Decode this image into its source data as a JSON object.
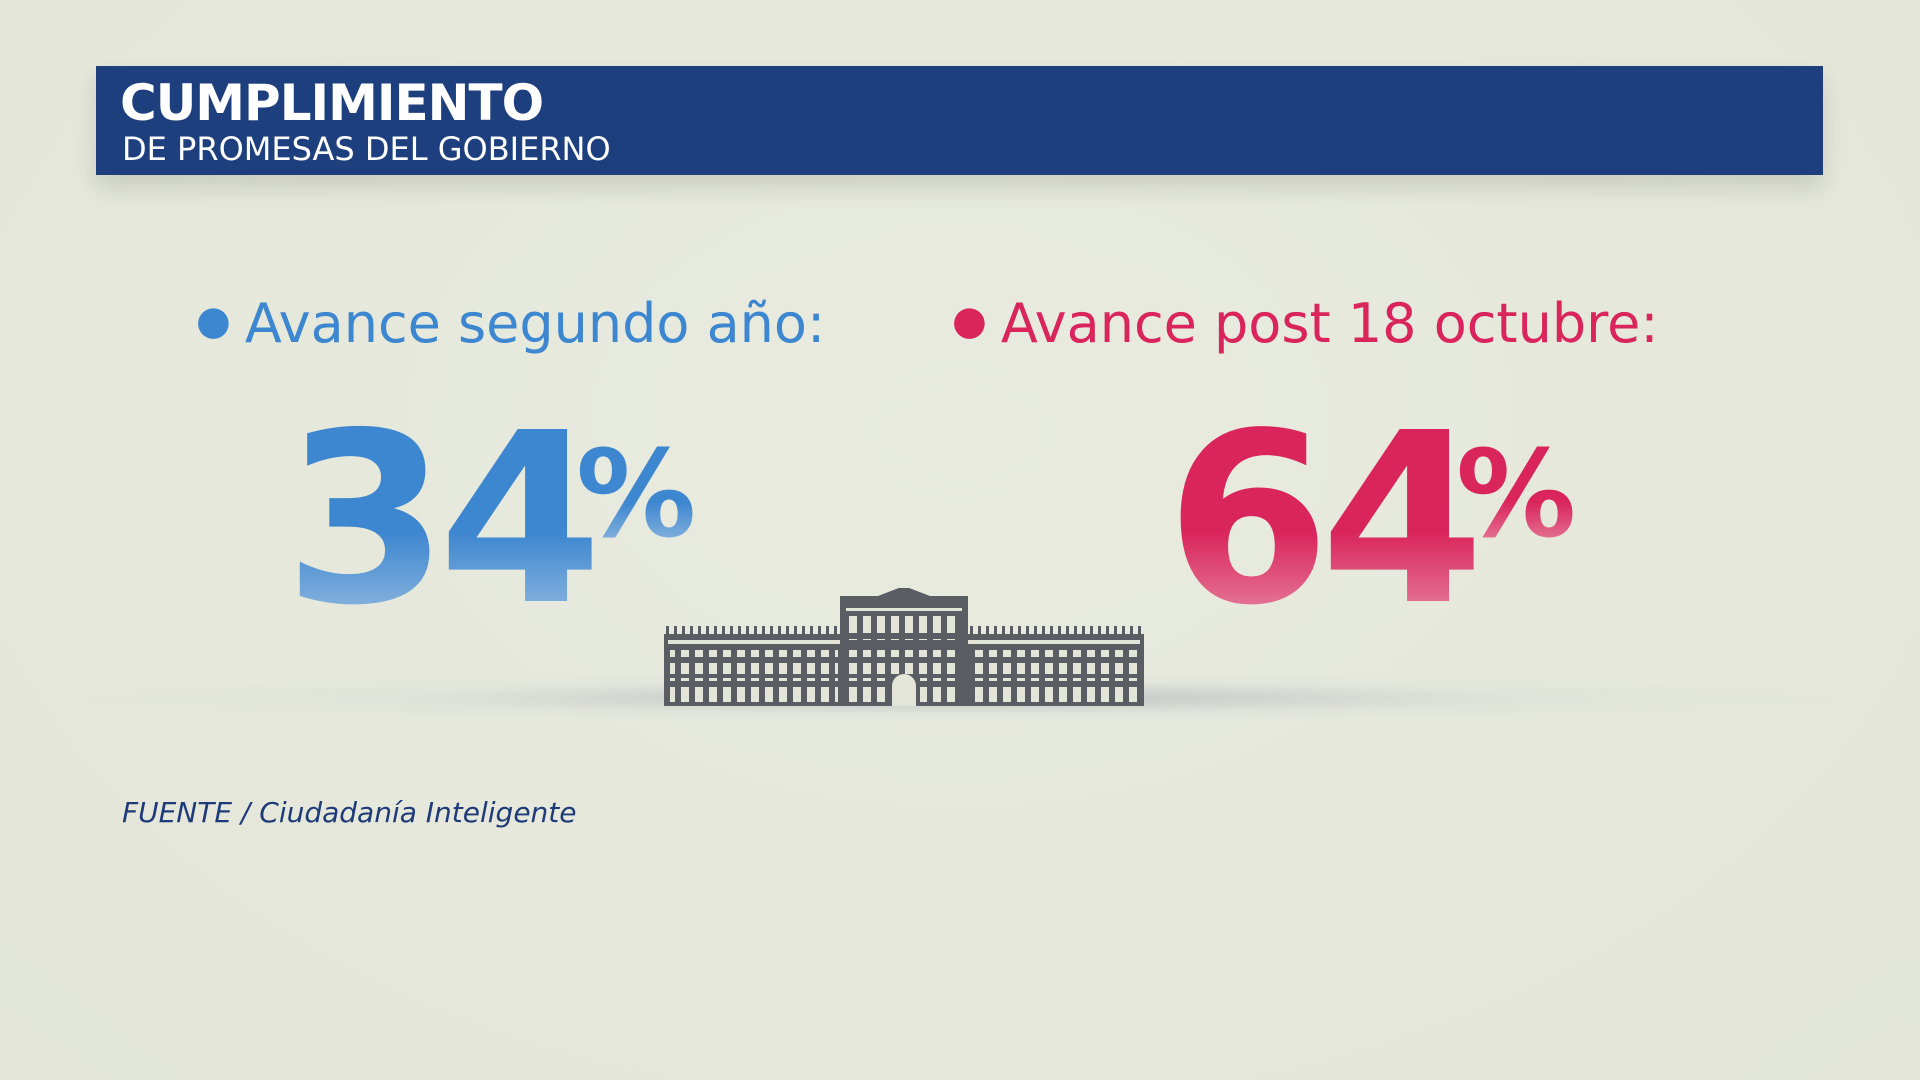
{
  "header": {
    "title": "CUMPLIMIENTO",
    "subtitle": "DE PROMESAS DEL GOBIERNO"
  },
  "stats": [
    {
      "label": "Avance segundo año:",
      "value": 34,
      "unit": "%",
      "color": "#3d86d0"
    },
    {
      "label": "Avance post 18 octubre:",
      "value": 64,
      "unit": "%",
      "color": "#d9245c"
    }
  ],
  "source": "FUENTE / Ciudadanía Inteligente"
}
